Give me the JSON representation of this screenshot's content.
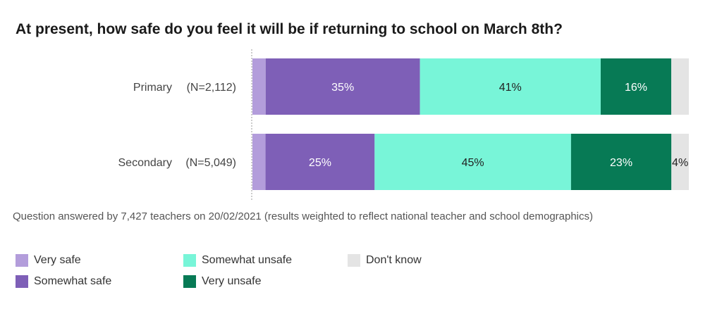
{
  "title": "At present, how safe do you feel it will be if returning to school on March 8th?",
  "note": "Question answered by 7,427 teachers on 20/02/2021 (results weighted to reflect national teacher and school demographics)",
  "chart_data": {
    "type": "bar",
    "orientation": "horizontal",
    "stacked": true,
    "categories": [
      "Primary",
      "Secondary"
    ],
    "category_notes": [
      "(N=2,112)",
      "(N=5,049)"
    ],
    "series": [
      {
        "name": "Very safe",
        "color": "#b39ddb",
        "values": [
          3,
          3
        ],
        "labels": [
          "",
          ""
        ]
      },
      {
        "name": "Somewhat safe",
        "color": "#7e5fb7",
        "values": [
          35,
          25
        ],
        "labels": [
          "35%",
          "25%"
        ]
      },
      {
        "name": "Somewhat unsafe",
        "color": "#78f5d8",
        "values": [
          41,
          45
        ],
        "labels": [
          "41%",
          "45%"
        ]
      },
      {
        "name": "Very unsafe",
        "color": "#077a55",
        "values": [
          16,
          23
        ],
        "labels": [
          "16%",
          "23%"
        ]
      },
      {
        "name": "Don't know",
        "color": "#e4e4e4",
        "values": [
          4,
          4
        ],
        "labels": [
          "",
          "4%"
        ]
      }
    ],
    "xlim": [
      0,
      100
    ],
    "legend_position": "bottom"
  }
}
